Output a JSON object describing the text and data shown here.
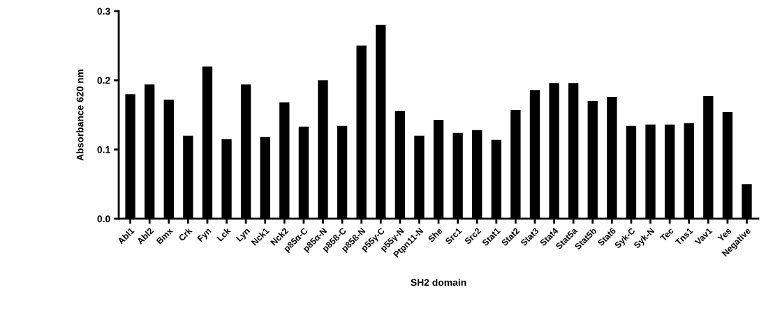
{
  "chart_data": {
    "type": "bar",
    "xlabel": "SH2 domain",
    "ylabel": "Absorbance 620 nm",
    "categories": [
      "Abl1",
      "Abl2",
      "Bmx",
      "Crk",
      "Fyn",
      "Lck",
      "Lyn",
      "Nck1",
      "Nck2",
      "p85α-C",
      "p85α-N",
      "p85ß-C",
      "p85ß-N",
      "p55γ-C",
      "p55γ-N",
      "Ptpn11-N",
      "She",
      "Src1",
      "Src2",
      "Stat1",
      "Stat2",
      "Stat3",
      "Stat4",
      "Stat5a",
      "Stat5b",
      "Stat6",
      "Syk-C",
      "Syk-N",
      "Tec",
      "Tns1",
      "Vav1",
      "Yes",
      "Negative"
    ],
    "values": [
      0.18,
      0.194,
      0.172,
      0.12,
      0.22,
      0.115,
      0.194,
      0.118,
      0.168,
      0.133,
      0.2,
      0.134,
      0.25,
      0.28,
      0.156,
      0.12,
      0.143,
      0.124,
      0.128,
      0.114,
      0.157,
      0.186,
      0.196,
      0.196,
      0.17,
      0.176,
      0.134,
      0.136,
      0.136,
      0.138,
      0.177,
      0.154,
      0.05
    ],
    "color": "#000000",
    "ylim": [
      0,
      0.3
    ],
    "yticks": [
      {
        "value": 0,
        "label": "0.0"
      },
      {
        "value": 0.1,
        "label": "0.1"
      },
      {
        "value": 0.2,
        "label": "0.2"
      },
      {
        "value": 0.3,
        "label": "0.3"
      }
    ],
    "grid": false
  }
}
